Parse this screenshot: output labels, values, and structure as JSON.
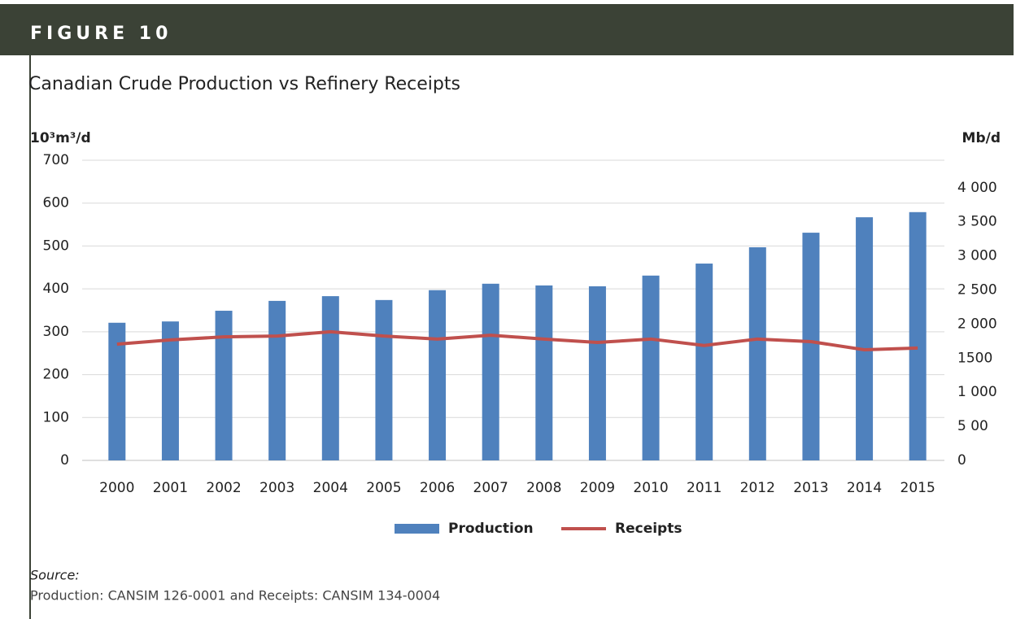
{
  "chart_data": {
    "type": "bar",
    "figure_label": "FIGURE 10",
    "title": "Canadian Crude Production vs Refinery Receipts",
    "y_axis_label": "10³m³/d",
    "y2_axis_label": "Mb/d",
    "categories": [
      "2000",
      "2001",
      "2002",
      "2003",
      "2004",
      "2005",
      "2006",
      "2007",
      "2008",
      "2009",
      "2010",
      "2011",
      "2012",
      "2013",
      "2014",
      "2015"
    ],
    "series": [
      {
        "name": "Production",
        "type": "bar",
        "color": "#4f81bd",
        "values": [
          321,
          324,
          349,
          372,
          383,
          374,
          397,
          412,
          408,
          406,
          431,
          459,
          497,
          531,
          567,
          579
        ]
      },
      {
        "name": "Receipts",
        "type": "line",
        "color": "#c0504d",
        "values": [
          271,
          281,
          288,
          290,
          300,
          290,
          283,
          292,
          283,
          275,
          283,
          268,
          283,
          277,
          258,
          262
        ]
      }
    ],
    "ylim": [
      0,
      700
    ],
    "yticks": [
      0,
      100,
      200,
      300,
      400,
      500,
      600,
      700
    ],
    "y2lim": [
      0,
      4403
    ],
    "y2ticks": [
      0,
      {
        "value": 500,
        "label": "5 00"
      },
      {
        "value": 1000,
        "label": "1 000"
      },
      1500,
      {
        "value": 2000,
        "label": "2 000"
      },
      {
        "value": 2500,
        "label": "2 500"
      },
      {
        "value": 3000,
        "label": "3 000"
      },
      {
        "value": 3500,
        "label": "3 500"
      },
      {
        "value": 4000,
        "label": "4 000"
      }
    ],
    "grid": true,
    "legend": "bottom",
    "source_label": "Source:",
    "source": "Production: CANSIM 126-0001 and Receipts: CANSIM 134-0004"
  }
}
